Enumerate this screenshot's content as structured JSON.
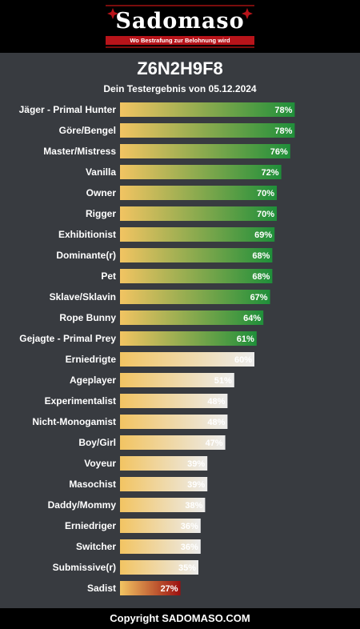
{
  "brand": {
    "name": "Sadomaso",
    "tagline": "Wo Bestrafung zur Belohnung wird"
  },
  "result_id": "Z6N2H9F8",
  "subtitle": "Dein Testergebnis von 05.12.2024",
  "footer": "Copyright SADOMASO.COM",
  "colors": {
    "background": "#383b40",
    "header": "#000000",
    "bar_start": "#f2c462",
    "green_end": "#1f8f3a",
    "white_end": "#ececec",
    "red_end": "#9b1010"
  },
  "chart_data": {
    "type": "bar",
    "orientation": "horizontal",
    "xlim": [
      0,
      100
    ],
    "categories": [
      "Jäger - Primal Hunter",
      "Göre/Bengel",
      "Master/Mistress",
      "Vanilla",
      "Owner",
      "Rigger",
      "Exhibitionist",
      "Dominante(r)",
      "Pet",
      "Sklave/Sklavin",
      "Rope Bunny",
      "Gejagte - Primal Prey",
      "Erniedrigte",
      "Ageplayer",
      "Experimentalist",
      "Nicht-Monogamist",
      "Boy/Girl",
      "Voyeur",
      "Masochist",
      "Daddy/Mommy",
      "Erniedriger",
      "Switcher",
      "Submissive(r)",
      "Sadist"
    ],
    "values": [
      78,
      78,
      76,
      72,
      70,
      70,
      69,
      68,
      68,
      67,
      64,
      61,
      60,
      51,
      48,
      48,
      47,
      39,
      39,
      38,
      36,
      36,
      35,
      27
    ],
    "value_labels": [
      "78%",
      "78%",
      "76%",
      "72%",
      "70%",
      "70%",
      "69%",
      "68%",
      "68%",
      "67%",
      "64%",
      "61%",
      "60%",
      "51%",
      "48%",
      "48%",
      "47%",
      "39%",
      "39%",
      "38%",
      "36%",
      "36%",
      "35%",
      "27%"
    ],
    "colors": [
      "green",
      "green",
      "green",
      "green",
      "green",
      "green",
      "green",
      "green",
      "green",
      "green",
      "green",
      "green",
      "white",
      "white",
      "white",
      "white",
      "white",
      "white",
      "white",
      "white",
      "white",
      "white",
      "white",
      "red"
    ]
  }
}
